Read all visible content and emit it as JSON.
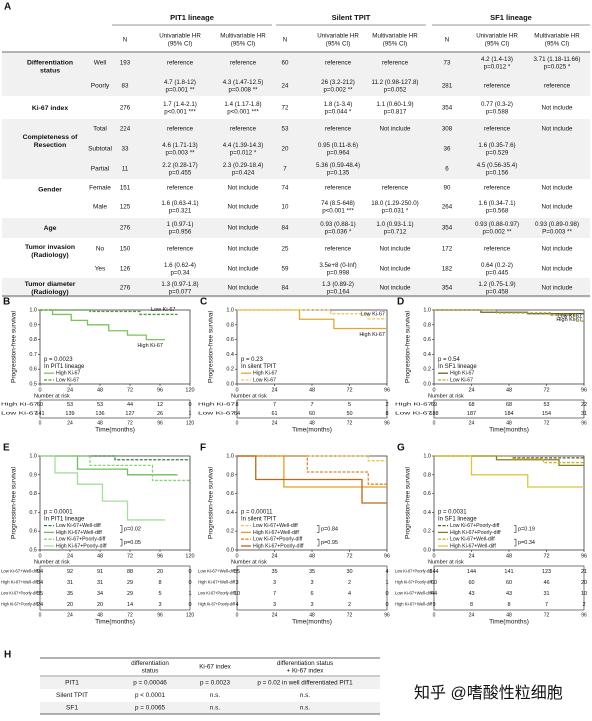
{
  "table_a": {
    "label": "A",
    "groups": [
      "PIT1 lineage",
      "Silent TPIT",
      "SF1 lineage"
    ],
    "columns": [
      [
        "N"
      ],
      [
        "Univariable HR",
        "(95% CI)"
      ],
      [
        "Multivariable HR",
        "(95% CI)"
      ]
    ],
    "rows": [
      {
        "variable": [
          "Differentiation",
          "status"
        ],
        "level": "Well",
        "cells": [
          193,
          "reference",
          "reference",
          60,
          "reference",
          "reference",
          73,
          [
            "4.2 (1.4-13)",
            "p=0.012 *"
          ],
          [
            "3.71 (1.18-11.66)",
            "p=0.025 *"
          ]
        ]
      },
      {
        "level": "Poorly",
        "cells": [
          83,
          [
            "4.7 (1.8-12)",
            "p=0.001 **"
          ],
          [
            "4.3 (1.47-12.5)",
            "p=0.008 **"
          ],
          24,
          [
            "26 (3.2-212)",
            "p=0.002 **"
          ],
          [
            "11.2 (0.98-127.8)",
            "p=0.052"
          ],
          281,
          "reference",
          "reference"
        ]
      },
      {
        "variable": [
          "Ki-67 index"
        ],
        "cells": [
          276,
          [
            "1.7 (1.4-2.1)",
            "p<0.001 ***"
          ],
          [
            "1.4 (1.17-1.8)",
            "p<0.001 ***"
          ],
          72,
          [
            "1.8 (1-3.4)",
            "p=0.044 *"
          ],
          [
            "1.1 (0.60-1.9)",
            "p=0.817"
          ],
          354,
          [
            "0.77 (0.3-2)",
            "p=0.588"
          ],
          "Not include"
        ]
      },
      {
        "variable": [
          "Completeness of",
          "Resection"
        ],
        "level": "Total",
        "cells": [
          224,
          "reference",
          "reference",
          53,
          "reference",
          "Not include",
          308,
          "reference",
          "Not include"
        ]
      },
      {
        "level": "Subtotal",
        "cells": [
          33,
          [
            "4.6 (1.71-13)",
            "p=0.003 **"
          ],
          [
            "4.4 (1.39-14.3)",
            "p=0.012 *"
          ],
          20,
          [
            "0.95 (0.11-8.6)",
            "p=0.964"
          ],
          null,
          36,
          [
            "1.6 (0.35-7.6)",
            "p=0.529"
          ],
          null
        ]
      },
      {
        "level": "Partial",
        "cells": [
          11,
          [
            "2.2 (0.28-17)",
            "p=0.455"
          ],
          [
            "2.3 (0.29-18.4)",
            "p=0.424"
          ],
          7,
          [
            "5.36 (0.59-48.4)",
            "p=0.135"
          ],
          null,
          6,
          [
            "4.5 (0.56-35.4)",
            "p=0.156"
          ],
          null
        ]
      },
      {
        "variable": [
          "Gender"
        ],
        "level": "Female",
        "cells": [
          151,
          "reference",
          "Not include",
          74,
          "reference",
          "reference",
          90,
          "reference",
          "Not include"
        ]
      },
      {
        "level": "Male",
        "cells": [
          125,
          [
            "1.6 (0.63-4.1)",
            "p=0.321"
          ],
          "Not include",
          10,
          [
            "74 (8.5-648)",
            "p<0.001 ***"
          ],
          [
            "18.0 (1.29-250.0)",
            "p=0.031 *"
          ],
          264,
          [
            "1.6 (0.34-7.1)",
            "p=0.568"
          ],
          "Not include"
        ]
      },
      {
        "variable": [
          "Age"
        ],
        "cells": [
          276,
          [
            "1 (0.97-1)",
            "p=0.956"
          ],
          "Not include",
          84,
          [
            "0.93 (0.88-1)",
            "p=0.036 *"
          ],
          [
            "1.0 (0.93-1.1)",
            "p=0.712"
          ],
          354,
          [
            "0.93 (0.88-0.97)",
            "p=0.002 **"
          ],
          [
            "0.93 (0.89-0.98)",
            "P=0.003 **"
          ]
        ]
      },
      {
        "variable": [
          "Tumor invasion",
          "(Radiology)"
        ],
        "level": "No",
        "cells": [
          150,
          "reference",
          "Not include",
          25,
          "reference",
          "Not include",
          172,
          "reference",
          "Not include"
        ]
      },
      {
        "level": "Yes",
        "cells": [
          126,
          [
            "1.6 (0.62-4)",
            "p=0.34"
          ],
          "Not include",
          59,
          [
            "3.5e+8 (0-Inf)",
            "p=0.998"
          ],
          "Not include",
          182,
          [
            "0.64 (0.2-2)",
            "p=0.445"
          ],
          "Not include"
        ]
      },
      {
        "variable": [
          "Tumor diameter",
          "(Radiology)"
        ],
        "cells": [
          276,
          [
            "1.3 (0.97-1.8)",
            "p=0.077"
          ],
          "Not include",
          84,
          [
            "1.3 (0.89-2)",
            "p=0.164"
          ],
          "Not include",
          354,
          [
            "1.2 (0.75-1.9)",
            "p=0.458"
          ],
          "Not include"
        ]
      }
    ]
  },
  "chart_data": [
    {
      "type": "step",
      "label": "B",
      "ylabel": "Progression-free survival",
      "xlabel": "Time(months)",
      "risk_title": "Number at risk",
      "xlim": [
        0,
        120
      ],
      "xticks": [
        0,
        24,
        48,
        72,
        96,
        120
      ],
      "ylim": [
        0.5,
        1
      ],
      "yticks": [
        0.5,
        0.6,
        0.7,
        0.8,
        0.9,
        {
          "value": 1,
          "label": "1.0"
        }
      ],
      "annotations": [
        "p = 0.0023",
        "In PIT1 lineage"
      ],
      "curve_labels": true,
      "series": [
        {
          "name": "High Ki-67",
          "color": "#7bc35a",
          "dash": false,
          "x": [
            0,
            10,
            10,
            25,
            25,
            38,
            38,
            55,
            55,
            70,
            70,
            85,
            85,
            100
          ],
          "values": [
            1,
            1,
            0.97,
            0.97,
            0.93,
            0.93,
            0.9,
            0.9,
            0.86,
            0.86,
            0.83,
            0.83,
            0.8,
            0.8
          ],
          "at_risk": [
            60,
            53,
            53,
            44,
            12,
            0
          ]
        },
        {
          "name": "Low Ki-67",
          "color": "#4f9a33",
          "dash": true,
          "x": [
            0,
            40,
            40,
            80,
            80,
            110
          ],
          "values": [
            1,
            1,
            0.99,
            0.99,
            0.97,
            0.97
          ],
          "at_risk": [
            141,
            139,
            136,
            127,
            26,
            1
          ]
        }
      ]
    },
    {
      "type": "step",
      "label": "C",
      "ylabel": "Progression-free survival",
      "xlabel": "Time(months)",
      "risk_title": "Number at risk",
      "xlim": [
        0,
        96
      ],
      "xticks": [
        0,
        24,
        48,
        72,
        96
      ],
      "ylim": [
        0,
        1
      ],
      "yticks": [
        {
          "value": 0,
          "label": "0.0"
        },
        0.2,
        0.4,
        0.6,
        0.8,
        {
          "value": 1,
          "label": "1.0"
        }
      ],
      "annotations": [
        "p = 0.23",
        "In silent TPIT"
      ],
      "curve_labels": true,
      "series": [
        {
          "name": "High Ki-67",
          "color": "#e0a82e",
          "dash": false,
          "x": [
            0,
            40,
            40,
            62,
            62,
            96
          ],
          "values": [
            1,
            1,
            0.875,
            0.875,
            0.75,
            0.75
          ],
          "at_risk": [
            8,
            7,
            7,
            5,
            2
          ]
        },
        {
          "name": "Low Ki-67",
          "color": "#f0c860",
          "dash": true,
          "x": [
            0,
            60,
            60,
            84,
            84,
            96
          ],
          "values": [
            1,
            1,
            0.95,
            0.95,
            0.88,
            0.88
          ],
          "at_risk": [
            64,
            61,
            60,
            50,
            8
          ]
        }
      ]
    },
    {
      "type": "step",
      "label": "D",
      "ylabel": "Progression-free survival",
      "xlabel": "Time(months)",
      "risk_title": "Number at risk",
      "xlim": [
        0,
        96
      ],
      "xticks": [
        0,
        24,
        48,
        72,
        96
      ],
      "ylim": [
        0,
        1
      ],
      "yticks": [
        {
          "value": 0,
          "label": "0.0"
        },
        0.2,
        0.4,
        0.6,
        0.8,
        {
          "value": 1,
          "label": "1.0"
        }
      ],
      "annotations": [
        "p = 0.54",
        "In SF1 lineage"
      ],
      "curve_labels": true,
      "series": [
        {
          "name": "High Ki-67",
          "color": "#6b6420",
          "dash": false,
          "x": [
            0,
            30,
            30,
            60,
            60,
            96
          ],
          "values": [
            1,
            1,
            0.97,
            0.97,
            0.95,
            0.95
          ],
          "at_risk": [
            69,
            68,
            68,
            53,
            22
          ]
        },
        {
          "name": "Low Ki-67",
          "color": "#b0a040",
          "dash": true,
          "x": [
            0,
            40,
            40,
            75,
            75,
            90,
            90,
            96
          ],
          "values": [
            1,
            1,
            0.96,
            0.96,
            0.93,
            0.93,
            0.85,
            0.85
          ],
          "at_risk": [
            188,
            187,
            184,
            154,
            31
          ]
        }
      ]
    },
    {
      "type": "step",
      "label": "E",
      "ylabel": "Progression-free survival",
      "xlabel": "Time(months)",
      "risk_title": "Number at risk",
      "xlim": [
        0,
        120
      ],
      "xticks": [
        0,
        24,
        48,
        72,
        96,
        120
      ],
      "ylim": [
        0.5,
        1
      ],
      "yticks": [
        0.5,
        0.6,
        0.7,
        0.8,
        0.9,
        {
          "value": 1,
          "label": "1.0"
        }
      ],
      "annotations": [
        "p = 0.0001",
        "In PIT1 lineage"
      ],
      "pairwise_p": [
        "p=0.02",
        "p=0.05"
      ],
      "series": [
        {
          "name": "Low Ki-67+Well-diff",
          "color": "#2e7d32",
          "dash": true,
          "x": [
            0,
            60,
            60,
            120
          ],
          "values": [
            1,
            1,
            0.98,
            0.98
          ],
          "at_risk": [
            94,
            92,
            91,
            88,
            20,
            0
          ]
        },
        {
          "name": "High Ki-67+Well-diff",
          "color": "#6cbf5a",
          "dash": false,
          "x": [
            0,
            30,
            30,
            70,
            70,
            110
          ],
          "values": [
            1,
            1,
            0.93,
            0.93,
            0.9,
            0.9
          ],
          "at_risk": [
            34,
            31,
            31,
            29,
            8,
            0
          ]
        },
        {
          "name": "Low Ki-67+Poorly-diff",
          "color": "#8fd07e",
          "dash": true,
          "x": [
            0,
            40,
            40,
            90,
            90,
            120
          ],
          "values": [
            1,
            1,
            0.95,
            0.95,
            0.87,
            0.87
          ],
          "at_risk": [
            35,
            35,
            34,
            29,
            5,
            1
          ]
        },
        {
          "name": "High Ki-67+Poorly-diff",
          "color": "#a9dca0",
          "dash": false,
          "x": [
            0,
            12,
            12,
            30,
            30,
            50,
            50,
            70,
            70,
            100
          ],
          "values": [
            1,
            1,
            0.91,
            0.91,
            0.85,
            0.85,
            0.76,
            0.76,
            0.66,
            0.66
          ],
          "at_risk": [
            24,
            20,
            20,
            14,
            3,
            0
          ]
        }
      ]
    },
    {
      "type": "step",
      "label": "F",
      "ylabel": "Progression-free survival",
      "xlabel": "Time(months)",
      "risk_title": "Number at risk",
      "xlim": [
        0,
        96
      ],
      "xticks": [
        0,
        24,
        48,
        72,
        96
      ],
      "ylim": [
        0,
        1
      ],
      "yticks": [
        {
          "value": 0,
          "label": "0.0"
        },
        0.2,
        0.4,
        0.6,
        0.8,
        {
          "value": 1,
          "label": "1.0"
        }
      ],
      "annotations": [
        "p = 0.00011",
        "In silent TPIT"
      ],
      "pairwise_p": [
        "p=0.84",
        "p=0.95"
      ],
      "series": [
        {
          "name": "Low Ki-67+Well-diff",
          "color": "#f2c14e",
          "dash": true,
          "x": [
            0,
            84,
            84,
            96
          ],
          "values": [
            1,
            1,
            0.95,
            0.95
          ],
          "at_risk": [
            35,
            35,
            35,
            30,
            4
          ]
        },
        {
          "name": "High Ki-67+Well-diff",
          "color": "#e0a020",
          "dash": false,
          "x": [
            0,
            30,
            30,
            96
          ],
          "values": [
            1,
            1,
            0.67,
            0.67
          ],
          "at_risk": [
            3,
            3,
            3,
            2,
            1
          ]
        },
        {
          "name": "Low Ki-67+Poorly-diff",
          "color": "#d9892a",
          "dash": true,
          "x": [
            0,
            45,
            45,
            84,
            84,
            96
          ],
          "values": [
            1,
            1,
            0.83,
            0.83,
            0.7,
            0.7
          ],
          "at_risk": [
            10,
            7,
            6,
            4,
            0
          ]
        },
        {
          "name": "High Ki-67+Poorly-diff",
          "color": "#b86a1a",
          "dash": false,
          "x": [
            0,
            12,
            12,
            80,
            80,
            96
          ],
          "values": [
            1,
            1,
            0.75,
            0.75,
            0.5,
            0.5
          ],
          "at_risk": [
            4,
            3,
            3,
            2,
            0
          ]
        }
      ]
    },
    {
      "type": "step",
      "label": "G",
      "ylabel": "Progression-free survival",
      "xlabel": "Time(months)",
      "risk_title": "Number at risk",
      "xlim": [
        0,
        96
      ],
      "xticks": [
        0,
        24,
        48,
        72,
        96
      ],
      "ylim": [
        0,
        1
      ],
      "yticks": [
        {
          "value": 0,
          "label": "0.0"
        },
        0.2,
        0.4,
        0.6,
        0.8,
        {
          "value": 1,
          "label": "1.0"
        }
      ],
      "annotations": [
        "p = 0.0031",
        "In SF1 lineage"
      ],
      "pairwise_p": [
        "p=0.19",
        "p=0.34"
      ],
      "series": [
        {
          "name": "Low Ki-67+Poorly-diff",
          "color": "#5a5a1a",
          "dash": true,
          "x": [
            0,
            50,
            50,
            96
          ],
          "values": [
            1,
            1,
            0.98,
            0.98
          ],
          "at_risk": [
            144,
            144,
            141,
            123,
            21
          ]
        },
        {
          "name": "High Ki-67+Poorly-diff",
          "color": "#8a7a20",
          "dash": false,
          "x": [
            0,
            40,
            40,
            80,
            80,
            96
          ],
          "values": [
            1,
            1,
            0.96,
            0.96,
            0.9,
            0.9
          ],
          "at_risk": [
            60,
            60,
            60,
            46,
            20
          ]
        },
        {
          "name": "Low Ki-67+Well-diff",
          "color": "#c4b43a",
          "dash": true,
          "x": [
            0,
            50,
            50,
            70,
            70,
            96
          ],
          "values": [
            1,
            1,
            0.97,
            0.97,
            0.93,
            0.93
          ],
          "at_risk": [
            44,
            43,
            43,
            31,
            10
          ]
        },
        {
          "name": "High Ki-67+Well-diff",
          "color": "#d8c840",
          "dash": false,
          "x": [
            0,
            24,
            24,
            60,
            60,
            96
          ],
          "values": [
            1,
            1,
            0.8,
            0.8,
            0.67,
            0.67
          ],
          "at_risk": [
            9,
            8,
            8,
            7,
            2
          ]
        }
      ]
    }
  ],
  "table_h": {
    "label": "H",
    "header": [
      [
        "differentiation",
        "status"
      ],
      [
        "Ki-67 index"
      ],
      [
        "differentiation status",
        "+ Ki-67 index"
      ]
    ],
    "rows": [
      {
        "name": "PIT1",
        "cells": [
          "p = 0.00046",
          "p = 0.0023",
          "p = 0.02 in well differentiated PIT1"
        ]
      },
      {
        "name": "Silent TPIT",
        "cells": [
          "p < 0.0001",
          "n.s.",
          "n.s."
        ]
      },
      {
        "name": "SF1",
        "cells": [
          "p = 0.0065",
          "n.s.",
          "n.s."
        ]
      }
    ]
  },
  "watermark": "知乎 @嗜酸性粒细胞"
}
